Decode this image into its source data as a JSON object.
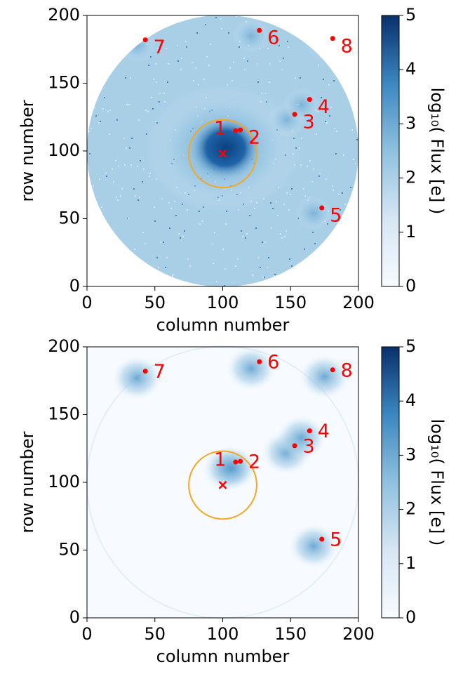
{
  "chart_data": [
    {
      "type": "scatter",
      "background": "disk",
      "xlabel": "column number",
      "ylabel": "row number",
      "xlim": [
        0,
        200
      ],
      "ylim": [
        0,
        200
      ],
      "xticks": [
        0,
        50,
        100,
        150,
        200
      ],
      "yticks": [
        0,
        50,
        100,
        150,
        200
      ],
      "color": "#ff0000",
      "x": [
        109.5,
        113,
        153,
        164,
        173,
        127,
        43,
        181
      ],
      "values": [
        115,
        115.5,
        127,
        138,
        58,
        189,
        182,
        183
      ],
      "point_labels": [
        "1",
        "2",
        "3",
        "4",
        "5",
        "6",
        "7",
        "8"
      ],
      "target": {
        "x": 100,
        "y": 98
      },
      "aperture_radius": 25,
      "aperture_color": "#f5a623",
      "colorbar": {
        "label": "log₁₀( Flux [e] )",
        "lim": [
          0,
          5
        ],
        "ticks": [
          0,
          1,
          2,
          3,
          4,
          5
        ]
      }
    },
    {
      "type": "scatter",
      "background": "field",
      "xlabel": "column number",
      "ylabel": "row number",
      "xlim": [
        0,
        200
      ],
      "ylim": [
        0,
        200
      ],
      "xticks": [
        0,
        50,
        100,
        150,
        200
      ],
      "yticks": [
        0,
        50,
        100,
        150,
        200
      ],
      "color": "#ff0000",
      "x": [
        109.5,
        113,
        153,
        164,
        173,
        127,
        43,
        181
      ],
      "values": [
        115,
        115.5,
        127,
        138,
        58,
        189,
        182,
        183
      ],
      "point_labels": [
        "1",
        "2",
        "3",
        "4",
        "5",
        "6",
        "7",
        "8"
      ],
      "target": {
        "x": 100,
        "y": 98
      },
      "aperture_radius": 25,
      "aperture_color": "#f5a623",
      "colorbar": {
        "label": "log₁₀( Flux [e] )",
        "lim": [
          0,
          5
        ],
        "ticks": [
          0,
          1,
          2,
          3,
          4,
          5
        ]
      }
    }
  ]
}
